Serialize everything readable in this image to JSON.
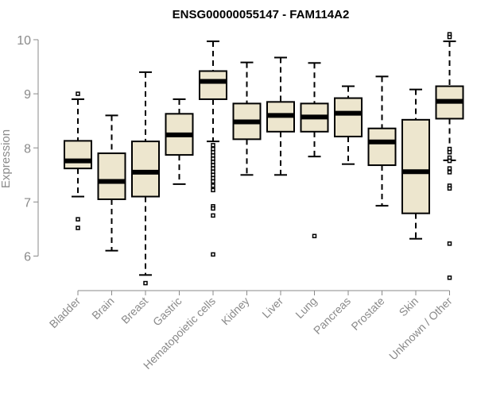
{
  "chart_data": {
    "type": "box",
    "title": "ENSG00000055147 - FAM114A2",
    "xlabel": "",
    "ylabel": "Expression",
    "ylim": [
      5.4,
      10.15
    ],
    "yticks": [
      6,
      7,
      8,
      9,
      10
    ],
    "grid": false,
    "colors": {
      "box_fill": "#ede6ce",
      "stroke": "#000000",
      "axis": "#8a8a8a"
    },
    "categories": [
      "Bladder",
      "Brain",
      "Breast",
      "Gastric",
      "Hematopoietic cells",
      "Kidney",
      "Liver",
      "Lung",
      "Pancreas",
      "Prostate",
      "Skin",
      "Unknown / Other"
    ],
    "boxes": [
      {
        "category": "Bladder",
        "whisker_low": 7.1,
        "q1": 7.62,
        "median": 7.76,
        "q3": 8.13,
        "whisker_high": 8.9,
        "outliers": [
          9.0,
          6.68,
          6.52
        ]
      },
      {
        "category": "Brain",
        "whisker_low": 6.1,
        "q1": 7.05,
        "median": 7.38,
        "q3": 7.9,
        "whisker_high": 8.6,
        "outliers": []
      },
      {
        "category": "Breast",
        "whisker_low": 5.65,
        "q1": 7.1,
        "median": 7.55,
        "q3": 8.12,
        "whisker_high": 9.4,
        "outliers": [
          5.5
        ]
      },
      {
        "category": "Gastric",
        "whisker_low": 7.33,
        "q1": 7.87,
        "median": 8.24,
        "q3": 8.63,
        "whisker_high": 8.9,
        "outliers": []
      },
      {
        "category": "Hematopoietic cells",
        "whisker_low": 8.12,
        "q1": 8.9,
        "median": 9.23,
        "q3": 9.42,
        "whisker_high": 9.97,
        "outliers": [
          8.05,
          7.98,
          7.92,
          7.86,
          7.8,
          7.74,
          7.68,
          7.62,
          7.56,
          7.5,
          7.44,
          7.38,
          7.3,
          7.22,
          6.92,
          6.88,
          6.75,
          6.03
        ]
      },
      {
        "category": "Kidney",
        "whisker_low": 7.5,
        "q1": 8.16,
        "median": 8.48,
        "q3": 8.82,
        "whisker_high": 9.58,
        "outliers": []
      },
      {
        "category": "Liver",
        "whisker_low": 7.5,
        "q1": 8.3,
        "median": 8.6,
        "q3": 8.85,
        "whisker_high": 9.67,
        "outliers": []
      },
      {
        "category": "Lung",
        "whisker_low": 7.84,
        "q1": 8.3,
        "median": 8.57,
        "q3": 8.82,
        "whisker_high": 9.57,
        "outliers": [
          6.37
        ]
      },
      {
        "category": "Pancreas",
        "whisker_low": 7.7,
        "q1": 8.21,
        "median": 8.64,
        "q3": 8.92,
        "whisker_high": 9.14,
        "outliers": []
      },
      {
        "category": "Prostate",
        "whisker_low": 6.93,
        "q1": 7.68,
        "median": 8.11,
        "q3": 8.36,
        "whisker_high": 9.32,
        "outliers": []
      },
      {
        "category": "Skin",
        "whisker_low": 6.32,
        "q1": 6.79,
        "median": 7.56,
        "q3": 8.52,
        "whisker_high": 9.08,
        "outliers": []
      },
      {
        "category": "Unknown / Other",
        "whisker_low": 7.77,
        "q1": 8.54,
        "median": 8.86,
        "q3": 9.14,
        "whisker_high": 9.97,
        "outliers": [
          10.1,
          10.05,
          7.98,
          7.92,
          7.82,
          7.76,
          7.62,
          7.55,
          7.3,
          7.25,
          6.23,
          5.6
        ]
      }
    ]
  }
}
